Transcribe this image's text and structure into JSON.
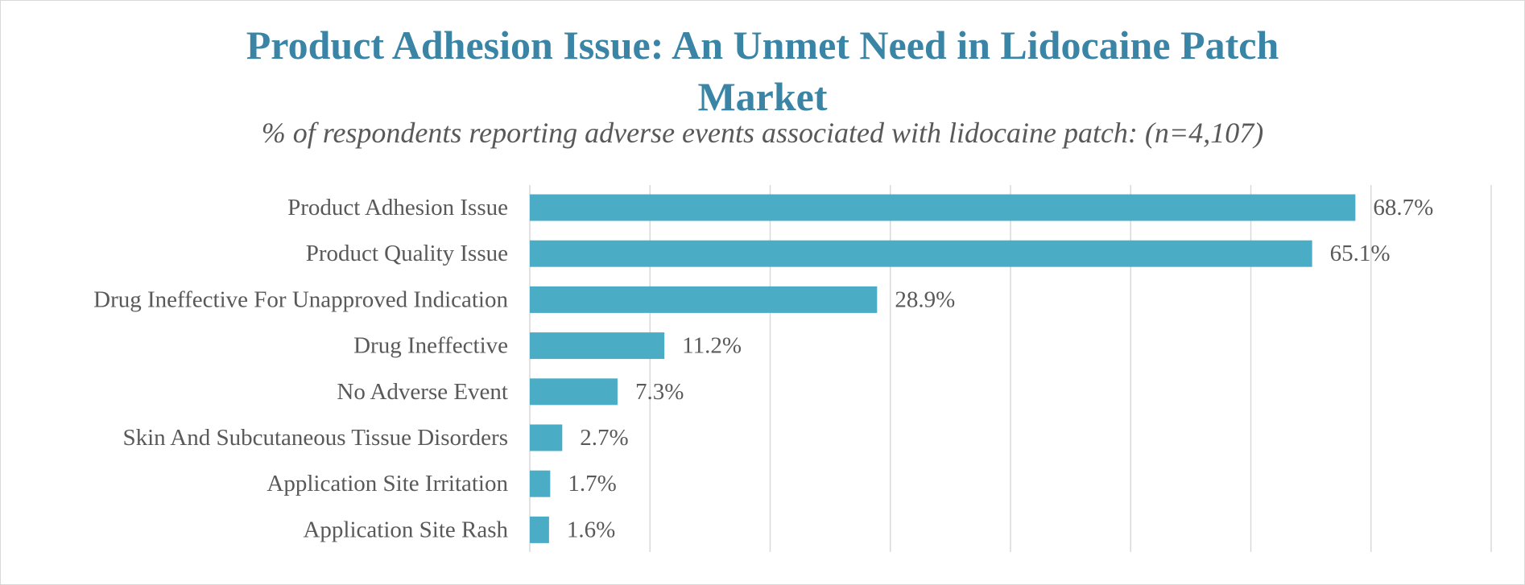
{
  "chart_data": {
    "type": "bar",
    "orientation": "horizontal",
    "title_line1": "Product Adhesion Issue: An Unmet Need in Lidocaine Patch",
    "title_line2": "Market",
    "subtitle": "% of respondents reporting adverse events associated with lidocaine patch: (n=4,107)",
    "categories": [
      "Product Adhesion Issue",
      "Product Quality Issue",
      "Drug Ineffective For Unapproved Indication",
      "Drug Ineffective",
      "No Adverse Event",
      "Skin And Subcutaneous Tissue Disorders",
      "Application Site Irritation",
      "Application Site Rash"
    ],
    "values": [
      68.7,
      65.1,
      28.9,
      11.2,
      7.3,
      2.7,
      1.7,
      1.6
    ],
    "value_labels": [
      "68.7%",
      "65.1%",
      "28.9%",
      "11.2%",
      "7.3%",
      "2.7%",
      "1.7%",
      "1.6%"
    ],
    "xlim": [
      0,
      80
    ],
    "grid_step": 10,
    "grid": true,
    "bar_color": "#4bacc6",
    "title_color": "#3a84a6",
    "text_color": "#595959",
    "grid_color": "#d9d9d9"
  }
}
